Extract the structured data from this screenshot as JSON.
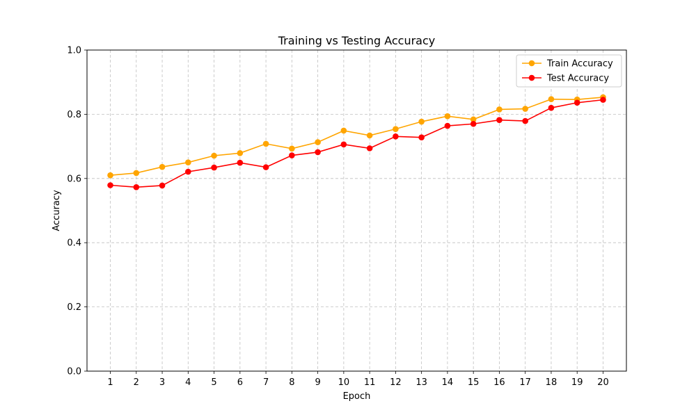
{
  "chart_data": {
    "type": "line",
    "title": "Training vs Testing Accuracy",
    "xlabel": "Epoch",
    "ylabel": "Accuracy",
    "x": [
      1,
      2,
      3,
      4,
      5,
      6,
      7,
      8,
      9,
      10,
      11,
      12,
      13,
      14,
      15,
      16,
      17,
      18,
      19,
      20
    ],
    "xlim": [
      0.1,
      20.9
    ],
    "ylim": [
      0.0,
      1.0
    ],
    "yticks": [
      "0.0",
      "0.2",
      "0.4",
      "0.6",
      "0.8",
      "1.0"
    ],
    "ytick_values": [
      0.0,
      0.2,
      0.4,
      0.6,
      0.8,
      1.0
    ],
    "grid": true,
    "grid_style": "dashed",
    "legend_position": "upper right",
    "series": [
      {
        "name": "Train Accuracy",
        "color": "#FFA500",
        "marker": "circle",
        "values": [
          0.61,
          0.617,
          0.636,
          0.65,
          0.671,
          0.679,
          0.708,
          0.693,
          0.713,
          0.749,
          0.734,
          0.754,
          0.777,
          0.794,
          0.784,
          0.815,
          0.817,
          0.847,
          0.846,
          0.853
        ]
      },
      {
        "name": "Test Accuracy",
        "color": "#FF0000",
        "marker": "circle",
        "values": [
          0.579,
          0.573,
          0.578,
          0.621,
          0.634,
          0.649,
          0.635,
          0.672,
          0.682,
          0.706,
          0.694,
          0.731,
          0.728,
          0.764,
          0.77,
          0.782,
          0.779,
          0.82,
          0.836,
          0.845
        ]
      }
    ]
  }
}
